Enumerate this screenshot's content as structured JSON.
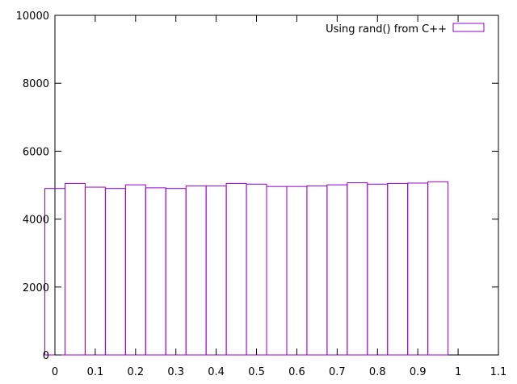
{
  "chart_data": {
    "type": "bar",
    "legend": {
      "label": "Using rand() from C++",
      "position": "top-right"
    },
    "series_color": "#9400d3",
    "xlim": [
      0,
      1.1
    ],
    "ylim": [
      0,
      10000
    ],
    "xticks": [
      0,
      0.1,
      0.2,
      0.3,
      0.4,
      0.5,
      0.6,
      0.7,
      0.8,
      0.9,
      1,
      1.1
    ],
    "xtick_labels": [
      "0",
      "0.1",
      "0.2",
      "0.3",
      "0.4",
      "0.5",
      "0.6",
      "0.7",
      "0.8",
      "0.9",
      "1",
      "1.1"
    ],
    "yticks": [
      0,
      2000,
      4000,
      6000,
      8000,
      10000
    ],
    "ytick_labels": [
      "0",
      "2000",
      "4000",
      "6000",
      "8000",
      "10000"
    ],
    "grid": false,
    "bin_width": 0.05,
    "bins": [
      {
        "x_start": -0.025,
        "value": 4900
      },
      {
        "x_start": 0.025,
        "value": 5050
      },
      {
        "x_start": 0.075,
        "value": 4940
      },
      {
        "x_start": 0.125,
        "value": 4900
      },
      {
        "x_start": 0.175,
        "value": 5010
      },
      {
        "x_start": 0.225,
        "value": 4920
      },
      {
        "x_start": 0.275,
        "value": 4900
      },
      {
        "x_start": 0.325,
        "value": 4980
      },
      {
        "x_start": 0.375,
        "value": 4980
      },
      {
        "x_start": 0.425,
        "value": 5050
      },
      {
        "x_start": 0.475,
        "value": 5030
      },
      {
        "x_start": 0.525,
        "value": 4960
      },
      {
        "x_start": 0.575,
        "value": 4960
      },
      {
        "x_start": 0.625,
        "value": 4980
      },
      {
        "x_start": 0.675,
        "value": 5010
      },
      {
        "x_start": 0.725,
        "value": 5070
      },
      {
        "x_start": 0.775,
        "value": 5030
      },
      {
        "x_start": 0.825,
        "value": 5050
      },
      {
        "x_start": 0.875,
        "value": 5060
      },
      {
        "x_start": 0.925,
        "value": 5100
      },
      {
        "x_start": 0.975,
        "value": 0
      }
    ]
  }
}
